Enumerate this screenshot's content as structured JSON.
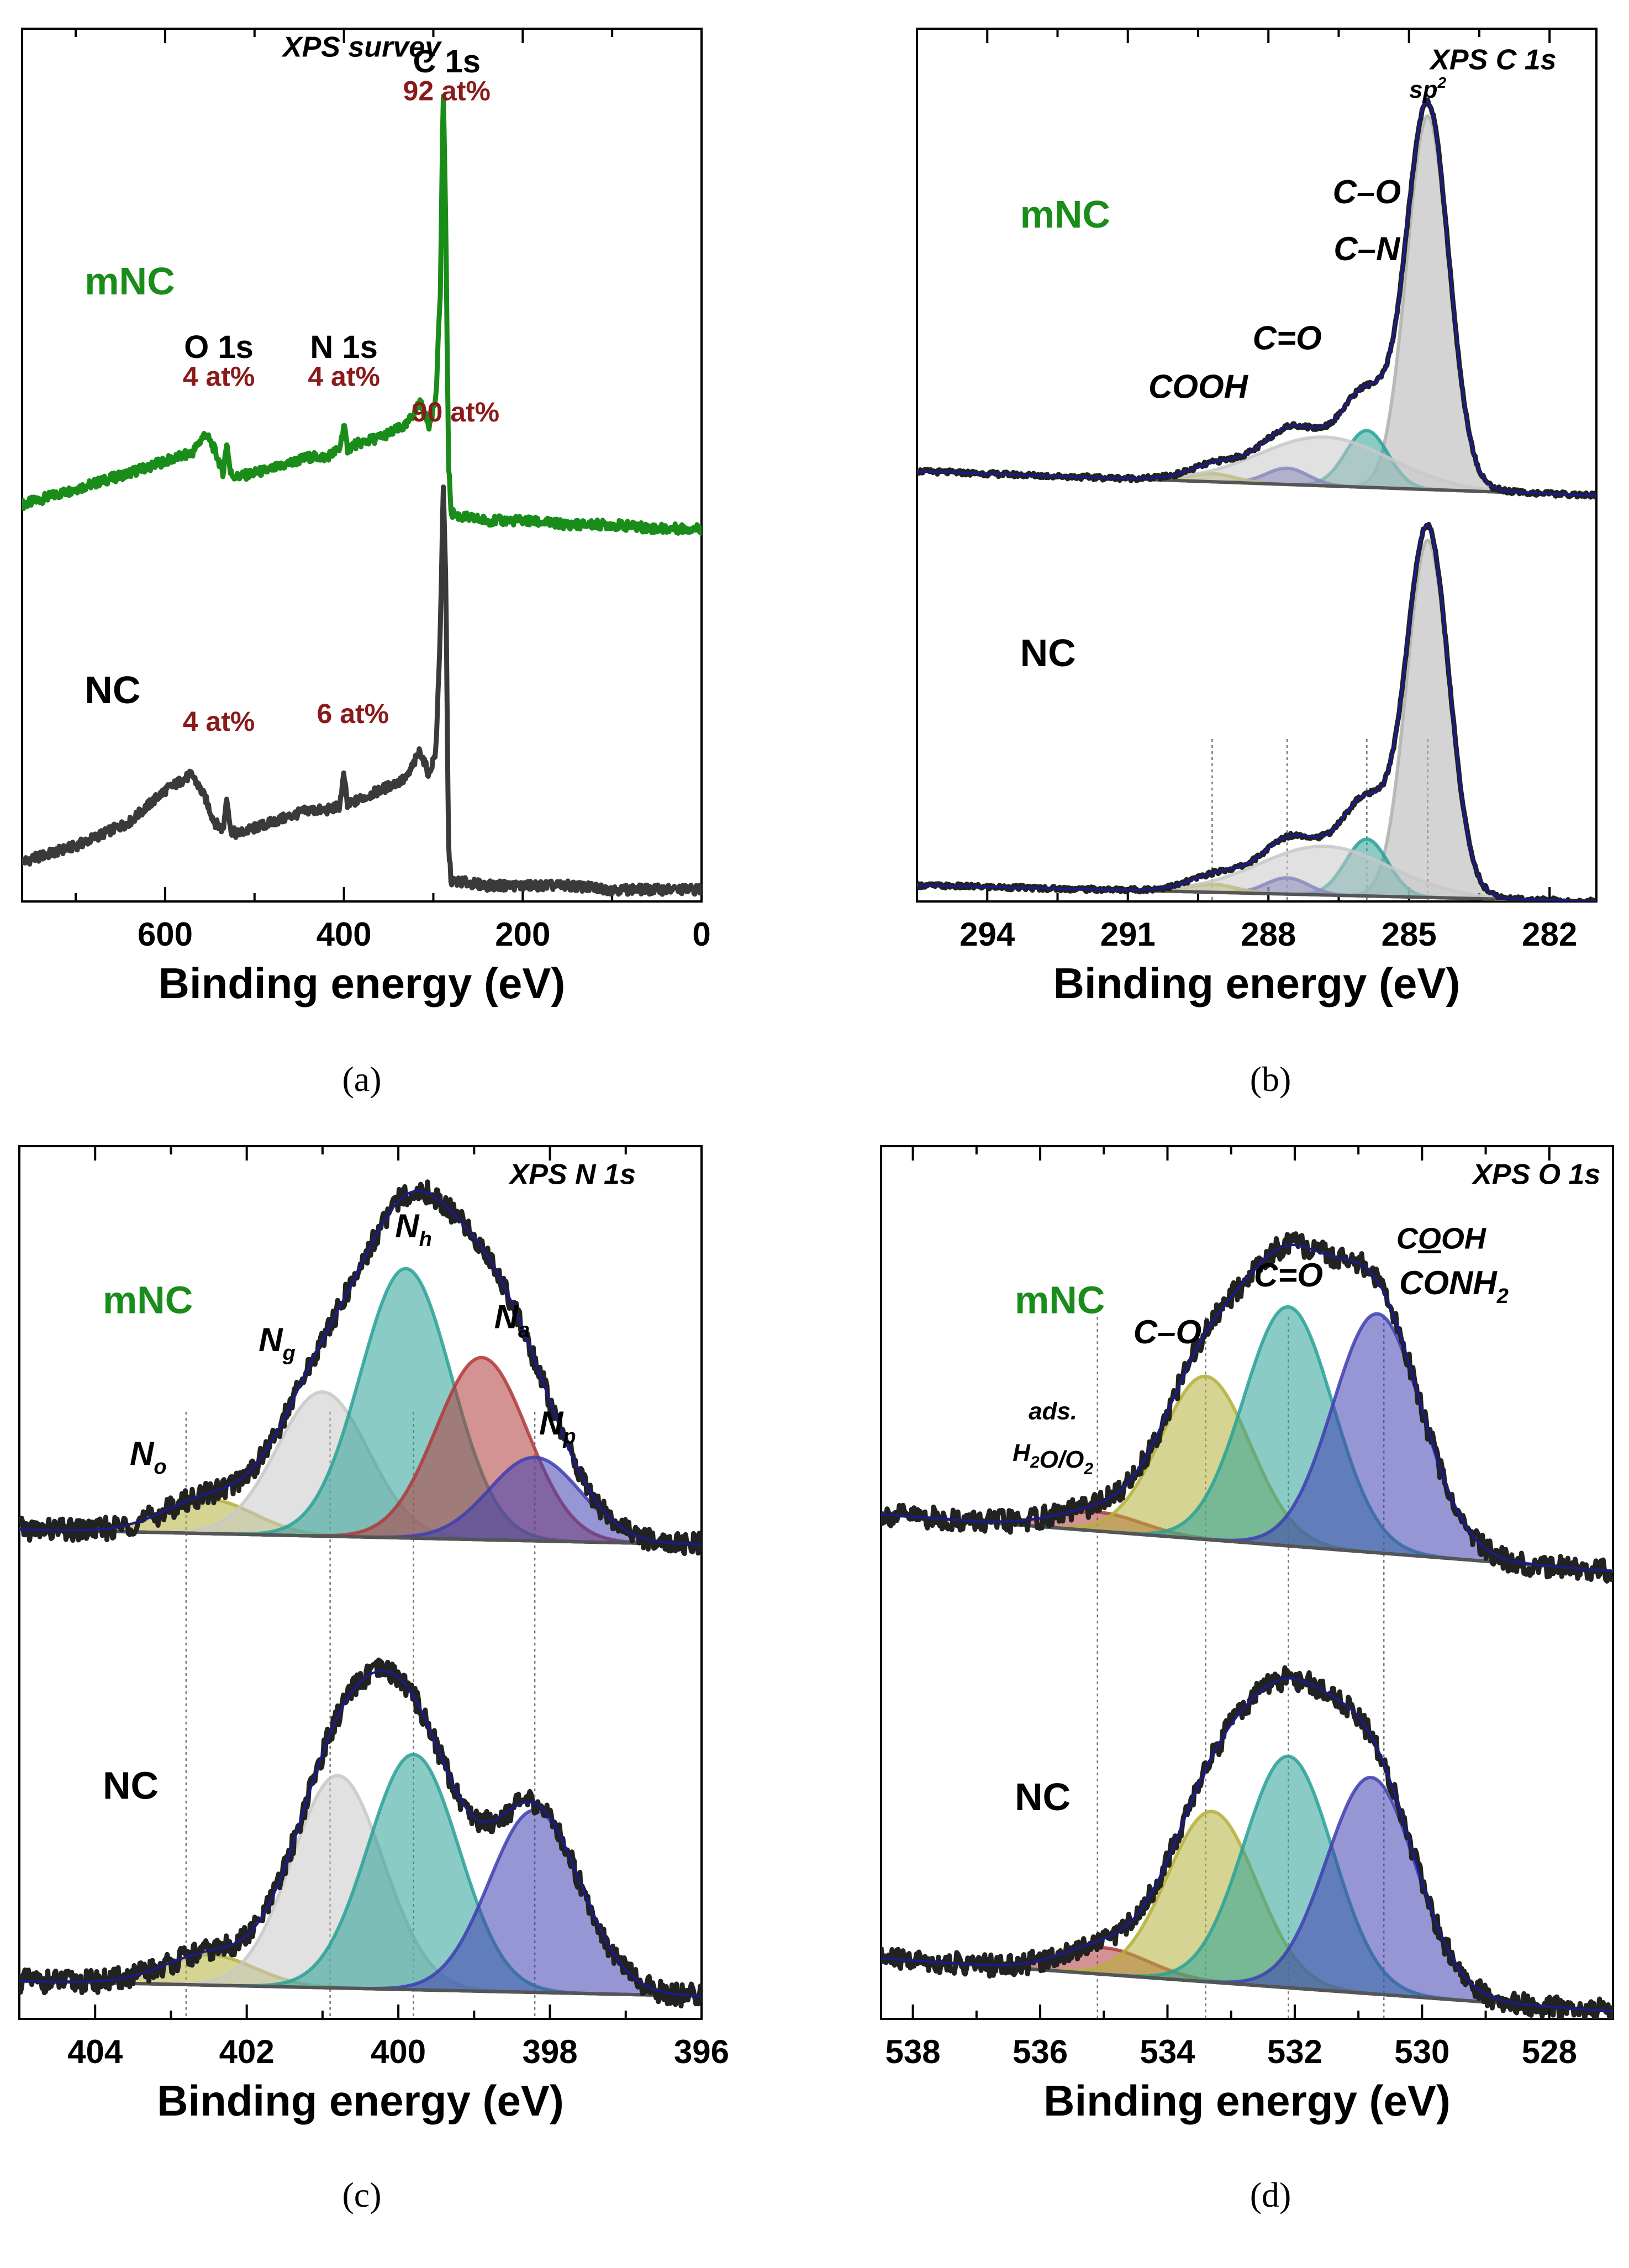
{
  "figure": {
    "panels": [
      "a",
      "b",
      "c",
      "d"
    ]
  },
  "chart_data": [
    {
      "type": "line",
      "panel": "a",
      "caption": "(a)",
      "title": "XPS survey",
      "xlabel": "Binding energy (eV)",
      "ylabel": "",
      "xlim": [
        760,
        0
      ],
      "ylim": [
        0,
        2.2
      ],
      "xticks": [
        600,
        400,
        200,
        0
      ],
      "series": [
        {
          "name": "mNC",
          "color": "#1a8c1a",
          "x": [
            760,
            700,
            640,
            600,
            570,
            555,
            545,
            535,
            531,
            527,
            520,
            480,
            440,
            420,
            405,
            400,
            396,
            390,
            360,
            330,
            315,
            305,
            297,
            292,
            289,
            286,
            283,
            280,
            270,
            240,
            200,
            150,
            100,
            50,
            0
          ],
          "y": [
            1.0,
            1.04,
            1.08,
            1.11,
            1.13,
            1.18,
            1.14,
            1.08,
            1.16,
            1.08,
            1.07,
            1.09,
            1.12,
            1.12,
            1.14,
            1.2,
            1.14,
            1.15,
            1.17,
            1.2,
            1.26,
            1.2,
            1.27,
            1.55,
            2.05,
            1.7,
            1.1,
            0.98,
            0.97,
            0.96,
            0.96,
            0.95,
            0.95,
            0.94,
            0.94
          ]
        },
        {
          "name": "NC",
          "color": "#3a3a3a",
          "x": [
            760,
            700,
            640,
            600,
            570,
            555,
            545,
            535,
            531,
            527,
            520,
            480,
            440,
            420,
            405,
            400,
            396,
            390,
            360,
            330,
            315,
            305,
            297,
            292,
            289,
            286,
            283,
            280,
            270,
            240,
            200,
            150,
            100,
            50,
            0
          ],
          "y": [
            0.1,
            0.14,
            0.2,
            0.28,
            0.32,
            0.26,
            0.2,
            0.18,
            0.27,
            0.18,
            0.17,
            0.2,
            0.23,
            0.23,
            0.24,
            0.32,
            0.24,
            0.25,
            0.28,
            0.31,
            0.38,
            0.32,
            0.38,
            0.7,
            1.05,
            0.8,
            0.14,
            0.05,
            0.05,
            0.04,
            0.04,
            0.04,
            0.03,
            0.03,
            0.03
          ]
        }
      ],
      "annotations": [
        {
          "id": "title",
          "text": "XPS survey",
          "x": 380,
          "y": 2.13,
          "style": "title"
        },
        {
          "id": "c1s",
          "text": "C 1s",
          "x": 285,
          "y": 2.09,
          "style": "black"
        },
        {
          "id": "c1s-mnc",
          "text": "92 at%",
          "x": 285,
          "y": 2.02,
          "style": "red"
        },
        {
          "id": "o1s",
          "text": "O 1s",
          "x": 540,
          "y": 1.37,
          "style": "black"
        },
        {
          "id": "o1s-mnc",
          "text": "4 at%",
          "x": 540,
          "y": 1.3,
          "style": "red"
        },
        {
          "id": "n1s",
          "text": "N 1s",
          "x": 400,
          "y": 1.37,
          "style": "black"
        },
        {
          "id": "n1s-mnc",
          "text": "4 at%",
          "x": 400,
          "y": 1.3,
          "style": "red"
        },
        {
          "id": "c1s-nc",
          "text": "90 at%",
          "x": 275,
          "y": 1.21,
          "style": "red"
        },
        {
          "id": "o1s-nc",
          "text": "4 at%",
          "x": 540,
          "y": 0.43,
          "style": "red"
        },
        {
          "id": "n1s-nc",
          "text": "6 at%",
          "x": 390,
          "y": 0.45,
          "style": "red"
        },
        {
          "id": "label-mnc",
          "text": "mNC",
          "x": 690,
          "y": 1.53,
          "style": "green-label"
        },
        {
          "id": "label-nc",
          "text": "NC",
          "x": 690,
          "y": 0.5,
          "style": "black-label"
        }
      ]
    },
    {
      "type": "line",
      "panel": "b",
      "caption": "(b)",
      "title": "XPS C 1s",
      "xlabel": "Binding energy (eV)",
      "ylabel": "",
      "xlim": [
        295.5,
        281
      ],
      "ylim": [
        0,
        2.15
      ],
      "xticks": [
        294,
        291,
        288,
        285,
        282
      ],
      "baselines": [
        {
          "name": "mNC",
          "x": [
            295.5,
            281
          ],
          "y": [
            1.06,
            1.0
          ]
        },
        {
          "name": "NC",
          "x": [
            295.5,
            281
          ],
          "y": [
            0.04,
            0.0
          ]
        }
      ],
      "components": [
        {
          "name": "sp2",
          "set": "mNC",
          "center": 284.6,
          "height": 0.92,
          "sigma": 0.45,
          "color": "#b0b0b0"
        },
        {
          "name": "C-O/C-N",
          "set": "mNC",
          "center": 285.9,
          "height": 0.14,
          "sigma": 0.45,
          "color": "#2aa198"
        },
        {
          "name": "C=O",
          "set": "mNC",
          "center": 287.6,
          "height": 0.04,
          "sigma": 0.45,
          "color": "#3f3fb0"
        },
        {
          "name": "COOH",
          "set": "mNC",
          "center": 289.2,
          "height": 0.02,
          "sigma": 0.5,
          "color": "#b5b03a"
        },
        {
          "name": "tail",
          "set": "mNC",
          "center": 286.8,
          "height": 0.12,
          "sigma": 1.4,
          "color": "#c8c8c8"
        },
        {
          "name": "sp2",
          "set": "NC",
          "center": 284.6,
          "height": 0.88,
          "sigma": 0.45,
          "color": "#b0b0b0"
        },
        {
          "name": "C-O/C-N",
          "set": "NC",
          "center": 285.9,
          "height": 0.14,
          "sigma": 0.45,
          "color": "#2aa198"
        },
        {
          "name": "C=O",
          "set": "NC",
          "center": 287.6,
          "height": 0.04,
          "sigma": 0.45,
          "color": "#3f3fb0"
        },
        {
          "name": "COOH",
          "set": "NC",
          "center": 289.2,
          "height": 0.02,
          "sigma": 0.5,
          "color": "#b5b03a"
        },
        {
          "name": "tail",
          "set": "NC",
          "center": 286.8,
          "height": 0.12,
          "sigma": 1.4,
          "color": "#c8c8c8"
        }
      ],
      "refline_positions": [
        289.2,
        287.6,
        285.9,
        284.6
      ],
      "annotations": [
        {
          "id": "title",
          "text": "XPS C 1s",
          "x": 283.2,
          "y": 2.05,
          "style": "title"
        },
        {
          "id": "sp2",
          "text": "sp",
          "sup": "2",
          "x": 284.6,
          "y": 1.98,
          "style": "italic-small"
        },
        {
          "id": "co",
          "text": "C–O",
          "x": 285.9,
          "y": 1.72,
          "style": "italic"
        },
        {
          "id": "cn",
          "text": "C–N",
          "x": 285.9,
          "y": 1.58,
          "style": "italic"
        },
        {
          "id": "c=o",
          "text": "C=O",
          "x": 287.6,
          "y": 1.36,
          "style": "italic"
        },
        {
          "id": "cooh",
          "text": "COOH",
          "x": 289.5,
          "y": 1.24,
          "style": "italic"
        },
        {
          "id": "label-mnc",
          "text": "mNC",
          "x": 293.3,
          "y": 1.66,
          "style": "green-label"
        },
        {
          "id": "label-nc",
          "text": "NC",
          "x": 293.3,
          "y": 0.58,
          "style": "black-label"
        }
      ]
    },
    {
      "type": "line",
      "panel": "c",
      "caption": "(c)",
      "title": "XPS N 1s",
      "xlabel": "Binding energy (eV)",
      "ylabel": "",
      "xlim": [
        405,
        396
      ],
      "ylim": [
        0,
        2.3
      ],
      "xticks": [
        404,
        402,
        400,
        398,
        396
      ],
      "baselines": [
        {
          "name": "mNC",
          "x": [
            405,
            396
          ],
          "y": [
            1.29,
            1.25
          ]
        },
        {
          "name": "NC",
          "x": [
            405,
            396
          ],
          "y": [
            0.1,
            0.06
          ]
        }
      ],
      "components": [
        {
          "name": "No",
          "set": "mNC",
          "center": 402.5,
          "height": 0.09,
          "sigma": 0.6,
          "color": "#b5b03a"
        },
        {
          "name": "Ng",
          "set": "mNC",
          "center": 401.0,
          "height": 0.38,
          "sigma": 0.6,
          "color": "#c8c8c8"
        },
        {
          "name": "Nh",
          "set": "mNC",
          "center": 399.9,
          "height": 0.71,
          "sigma": 0.6,
          "color": "#2aa198"
        },
        {
          "name": "Na",
          "set": "mNC",
          "center": 398.9,
          "height": 0.48,
          "sigma": 0.6,
          "color": "#b03a3a"
        },
        {
          "name": "Np",
          "set": "mNC",
          "center": 398.2,
          "height": 0.22,
          "sigma": 0.6,
          "color": "#3f3fb0"
        },
        {
          "name": "No",
          "set": "NC",
          "center": 402.5,
          "height": 0.08,
          "sigma": 0.6,
          "color": "#b5b03a"
        },
        {
          "name": "Ng",
          "set": "NC",
          "center": 400.8,
          "height": 0.56,
          "sigma": 0.6,
          "color": "#c8c8c8"
        },
        {
          "name": "Nh",
          "set": "NC",
          "center": 399.8,
          "height": 0.62,
          "sigma": 0.6,
          "color": "#2aa198"
        },
        {
          "name": "Np",
          "set": "NC",
          "center": 398.2,
          "height": 0.48,
          "sigma": 0.6,
          "color": "#3f3fb0"
        }
      ],
      "refline_positions": [
        402.8,
        400.9,
        399.8,
        398.2
      ],
      "annotations": [
        {
          "id": "title",
          "text": "XPS N 1s",
          "x": 397.7,
          "y": 2.2,
          "style": "title"
        },
        {
          "id": "nh",
          "text": "N",
          "sub": "h",
          "x": 399.8,
          "y": 2.06,
          "style": "italic"
        },
        {
          "id": "ng",
          "text": "N",
          "sub": "g",
          "x": 401.6,
          "y": 1.76,
          "style": "italic"
        },
        {
          "id": "na",
          "text": "N",
          "sub": "a",
          "x": 398.5,
          "y": 1.82,
          "style": "italic"
        },
        {
          "id": "np",
          "text": "N",
          "sub": "p",
          "x": 397.9,
          "y": 1.54,
          "style": "italic"
        },
        {
          "id": "no",
          "text": "N",
          "sub": "o",
          "x": 403.3,
          "y": 1.46,
          "style": "italic"
        },
        {
          "id": "label-mnc",
          "text": "mNC",
          "x": 403.9,
          "y": 1.86,
          "style": "green-label"
        },
        {
          "id": "label-nc",
          "text": "NC",
          "x": 403.9,
          "y": 0.58,
          "style": "black-label"
        }
      ]
    },
    {
      "type": "line",
      "panel": "d",
      "caption": "(d)",
      "title": "XPS O 1s",
      "xlabel": "Binding energy (eV)",
      "ylabel": "",
      "xlim": [
        538.5,
        527
      ],
      "ylim": [
        0,
        2.3
      ],
      "xticks": [
        538,
        536,
        534,
        532,
        530,
        528
      ],
      "baselines": [
        {
          "name": "mNC",
          "x": [
            538.5,
            527
          ],
          "y": [
            1.33,
            1.18
          ]
        },
        {
          "name": "NC",
          "x": [
            538.5,
            527
          ],
          "y": [
            0.16,
            0.02
          ]
        }
      ],
      "components": [
        {
          "name": "ads. H2O/O2",
          "set": "mNC",
          "center": 535.1,
          "height": 0.05,
          "sigma": 0.7,
          "color": "#b03a3a"
        },
        {
          "name": "C-O",
          "set": "mNC",
          "center": 533.4,
          "height": 0.43,
          "sigma": 0.7,
          "color": "#b5b03a"
        },
        {
          "name": "C=O",
          "set": "mNC",
          "center": 532.1,
          "height": 0.63,
          "sigma": 0.7,
          "color": "#2aa198"
        },
        {
          "name": "COOH/CONH2",
          "set": "mNC",
          "center": 530.7,
          "height": 0.63,
          "sigma": 0.7,
          "color": "#3f3fb0"
        },
        {
          "name": "ads. H2O/O2",
          "set": "NC",
          "center": 535.0,
          "height": 0.07,
          "sigma": 0.7,
          "color": "#b03a3a"
        },
        {
          "name": "C-O",
          "set": "NC",
          "center": 533.3,
          "height": 0.45,
          "sigma": 0.7,
          "color": "#b5b03a"
        },
        {
          "name": "C=O",
          "set": "NC",
          "center": 532.1,
          "height": 0.61,
          "sigma": 0.7,
          "color": "#2aa198"
        },
        {
          "name": "COOH/CONH2",
          "set": "NC",
          "center": 530.8,
          "height": 0.57,
          "sigma": 0.7,
          "color": "#3f3fb0"
        }
      ],
      "refline_positions": [
        535.1,
        533.4,
        532.1,
        530.6
      ],
      "annotations": [
        {
          "id": "title",
          "text": "XPS O 1s",
          "x": 528.2,
          "y": 2.2,
          "style": "title"
        },
        {
          "id": "cooh",
          "text": "COOH",
          "x": 529.7,
          "y": 2.03,
          "style": "italic-underline-o"
        },
        {
          "id": "conh2",
          "text": "CONH",
          "sub": "2",
          "x": 529.5,
          "y": 1.91,
          "style": "italic"
        },
        {
          "id": "c=o",
          "text": "C=O",
          "x": 532.1,
          "y": 1.93,
          "style": "italic"
        },
        {
          "id": "c-o",
          "text": "C–O",
          "x": 534.0,
          "y": 1.78,
          "style": "italic"
        },
        {
          "id": "ads",
          "text": "ads.",
          "x": 535.8,
          "y": 1.58,
          "style": "italic-small"
        },
        {
          "id": "h2o",
          "text": "H2O/O2",
          "x": 535.8,
          "y": 1.47,
          "style": "italic-small-subs"
        },
        {
          "id": "label-mnc",
          "text": "mNC",
          "x": 536.4,
          "y": 1.86,
          "style": "green-label"
        },
        {
          "id": "label-nc",
          "text": "NC",
          "x": 536.4,
          "y": 0.55,
          "style": "black-label"
        }
      ]
    }
  ]
}
